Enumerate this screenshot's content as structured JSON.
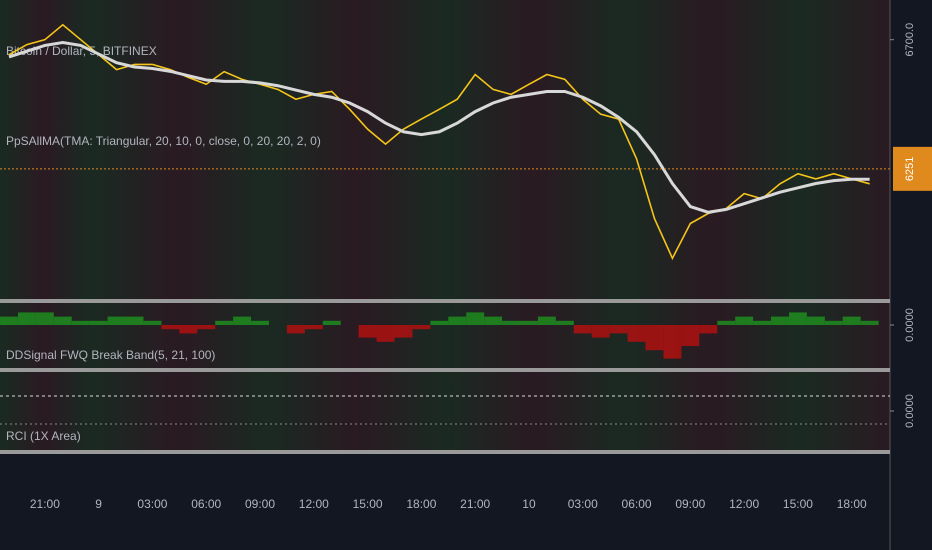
{
  "chart_data": [
    {
      "type": "line",
      "title": "Bitcoin / Dollar, 5, BITFINEX",
      "subtitle": "PpSAllMA(TMA: Triangular, 20, 10, 0, close, 0, 20, 20, 2, 0)",
      "categories": [
        null,
        null,
        "21:00",
        null,
        null,
        "9",
        null,
        null,
        "03:00",
        null,
        null,
        "06:00",
        null,
        null,
        "09:00",
        null,
        null,
        "12:00",
        null,
        null,
        "15:00",
        null,
        null,
        "18:00",
        null,
        null,
        "21:00",
        null,
        null,
        "10",
        null,
        null,
        "03:00",
        null,
        null,
        "06:00",
        null,
        null,
        "09:00",
        null,
        null,
        "12:00",
        null,
        null,
        "15:00",
        null,
        null,
        "18:00",
        null
      ],
      "series": [
        {
          "color": "#f5c518",
          "values": [
            6648,
            6683,
            6700,
            6752,
            6700,
            6648,
            6596,
            6614,
            6614,
            6596,
            6569,
            6545,
            6589,
            6562,
            6545,
            6527,
            6493,
            6510,
            6520,
            6458,
            6389,
            6337,
            6389,
            6424,
            6458,
            6493,
            6579,
            6527,
            6510,
            6545,
            6579,
            6562,
            6493,
            6441,
            6424,
            6286,
            6078,
            5940,
            6061,
            6096,
            6113,
            6165,
            6147,
            6199,
            6234,
            6216,
            6234,
            6216,
            6199
          ]
        },
        {
          "color": "#d8d8d8",
          "values": [
            6640,
            6660,
            6680,
            6690,
            6680,
            6650,
            6620,
            6605,
            6600,
            6590,
            6575,
            6560,
            6555,
            6555,
            6550,
            6540,
            6525,
            6510,
            6500,
            6480,
            6450,
            6410,
            6380,
            6370,
            6380,
            6410,
            6450,
            6480,
            6500,
            6510,
            6520,
            6520,
            6500,
            6470,
            6430,
            6380,
            6300,
            6200,
            6120,
            6100,
            6110,
            6130,
            6150,
            6170,
            6185,
            6200,
            6210,
            6215,
            6215
          ]
        }
      ],
      "ylim": [
        5802,
        6838
      ],
      "yticks": [
        {
          "value": 6700,
          "label": "6700.0"
        }
      ],
      "last_price": 6251,
      "last_price_color": "#e08a1e"
    },
    {
      "type": "bar",
      "title": "DDSignal FWQ Break Band(5, 21, 100)",
      "values": [
        2,
        3,
        3,
        2,
        1,
        1,
        2,
        2,
        1,
        -1,
        -2,
        -1,
        1,
        2,
        1,
        0,
        -2,
        -1,
        1,
        0,
        -3,
        -4,
        -3,
        -1,
        1,
        2,
        3,
        2,
        1,
        1,
        2,
        1,
        -2,
        -3,
        -2,
        -4,
        -6,
        -8,
        -5,
        -2,
        1,
        2,
        1,
        2,
        3,
        2,
        1,
        2,
        1
      ],
      "colors": [
        "#1e8c1e",
        "#b01010"
      ],
      "ylim": [
        -10,
        5
      ],
      "yticks": [
        {
          "value": 0,
          "label": "0.0000"
        }
      ]
    },
    {
      "type": "line",
      "title": "RCI (1X Area)",
      "ylim": [
        -1,
        1
      ],
      "yticks": [
        {
          "value": 0,
          "label": "0.0000"
        }
      ]
    }
  ]
}
